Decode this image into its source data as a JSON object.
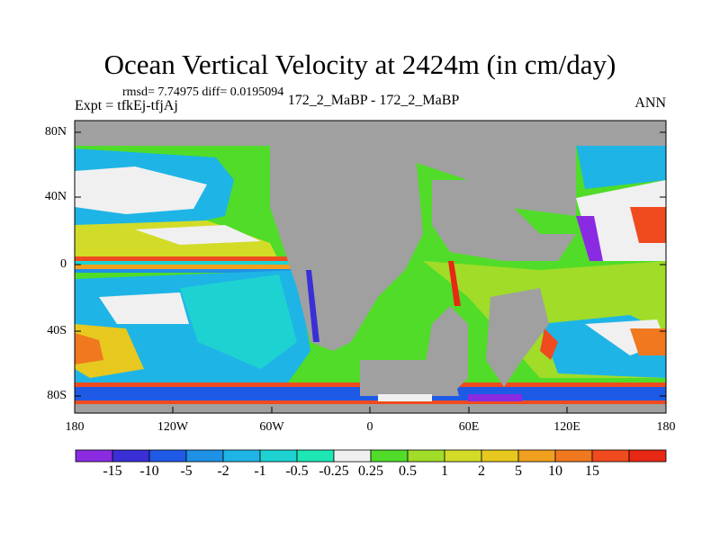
{
  "title": "Ocean Vertical Velocity at 2424m (in cm/day)",
  "stats_line": "rmsd= 7.74975 diff= 0.0195094",
  "expt_line": "Expt = tfkEj-tfjAj",
  "comparison_line": "172_2_MaBP - 172_2_MaBP",
  "season": "ANN",
  "map": {
    "projection": "cylindrical equidistant",
    "lon_range": [
      -180,
      180
    ],
    "lat_range": [
      -90,
      90
    ],
    "land_color": "#a0a0a0",
    "lat_ticks": [
      "80N",
      "40N",
      "0",
      "40S",
      "80S"
    ],
    "lon_ticks": [
      "180",
      "120W",
      "60W",
      "0",
      "60E",
      "120E",
      "180"
    ]
  },
  "colorbar": {
    "colors": [
      "#8a2be2",
      "#3a2fd6",
      "#1e5ae6",
      "#1e90e6",
      "#1eb4e6",
      "#1ed2d2",
      "#1ee6b4",
      "#f0f0f0",
      "#50dc28",
      "#a0dc28",
      "#d2dc28",
      "#e6c81e",
      "#f0a01e",
      "#f0781e",
      "#f04b1e",
      "#e62814"
    ],
    "labels": [
      "-15",
      "-10",
      "-5",
      "-2",
      "-1",
      "-0.5",
      "-0.25",
      "0.25",
      "0.5",
      "1",
      "2",
      "5",
      "10",
      "15"
    ]
  }
}
